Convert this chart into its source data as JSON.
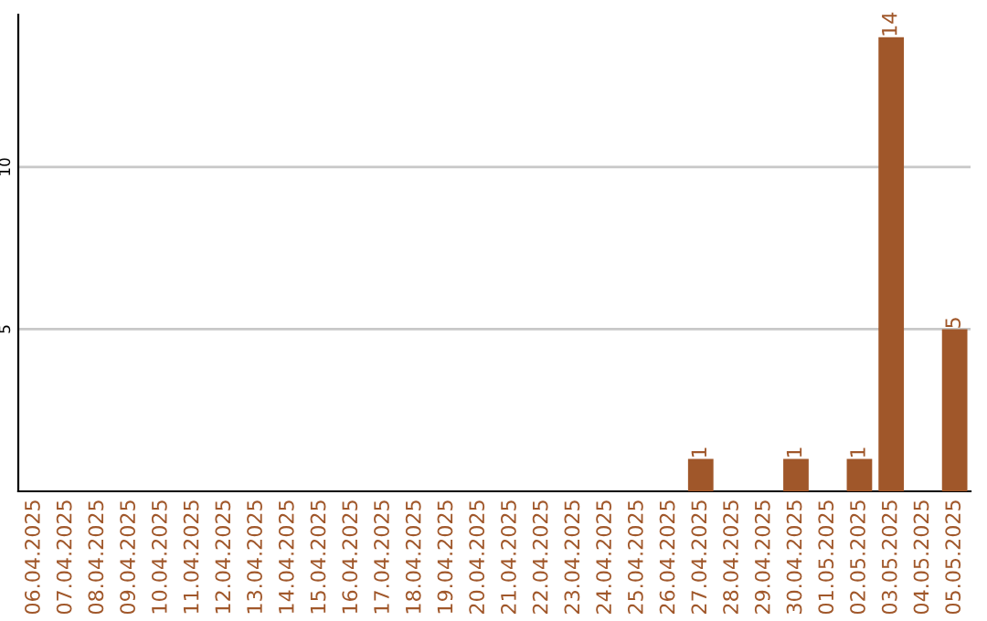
{
  "chart_data": {
    "type": "bar",
    "categories": [
      "06.04.2025",
      "07.04.2025",
      "08.04.2025",
      "09.04.2025",
      "10.04.2025",
      "11.04.2025",
      "12.04.2025",
      "13.04.2025",
      "14.04.2025",
      "15.04.2025",
      "16.04.2025",
      "17.04.2025",
      "18.04.2025",
      "19.04.2025",
      "20.04.2025",
      "21.04.2025",
      "22.04.2025",
      "23.04.2025",
      "24.04.2025",
      "25.04.2025",
      "26.04.2025",
      "27.04.2025",
      "28.04.2025",
      "29.04.2025",
      "30.04.2025",
      "01.05.2025",
      "02.05.2025",
      "03.05.2025",
      "04.05.2025",
      "05.05.2025"
    ],
    "values": [
      0,
      0,
      0,
      0,
      0,
      0,
      0,
      0,
      0,
      0,
      0,
      0,
      0,
      0,
      0,
      0,
      0,
      0,
      0,
      0,
      0,
      1,
      0,
      0,
      1,
      0,
      1,
      14,
      0,
      5
    ],
    "value_labels": [
      null,
      null,
      null,
      null,
      null,
      null,
      null,
      null,
      null,
      null,
      null,
      null,
      null,
      null,
      null,
      null,
      null,
      null,
      null,
      null,
      null,
      "1",
      null,
      null,
      "1",
      null,
      "1",
      "14",
      null,
      "5"
    ],
    "color": "#a0572a",
    "ylim": [
      0,
      14.7
    ],
    "yticks": [
      5,
      10
    ],
    "grid": "y"
  }
}
